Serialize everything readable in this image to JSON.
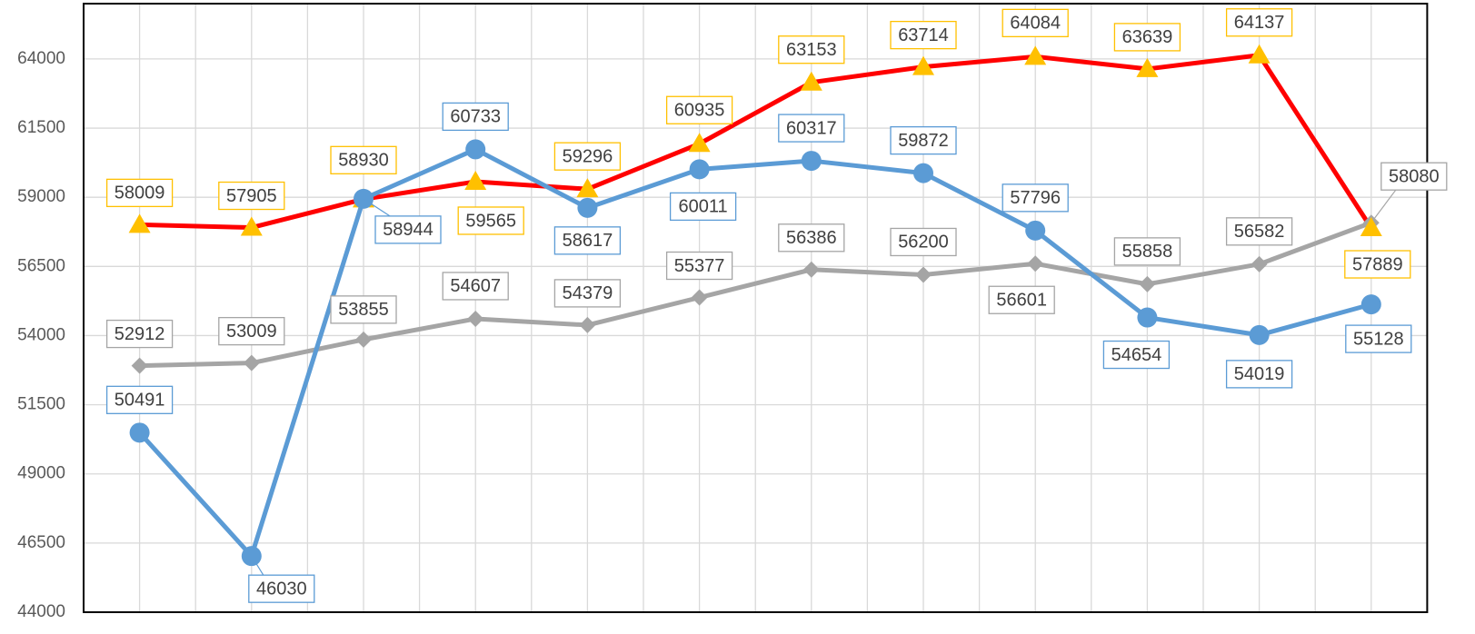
{
  "chart_data": {
    "type": "line",
    "categories": [
      null,
      null,
      null,
      null,
      null,
      null,
      null,
      null,
      null,
      null,
      null,
      null
    ],
    "ylim": [
      44000,
      66000
    ],
    "yticks": [
      44000,
      46500,
      49000,
      51500,
      54000,
      56500,
      59000,
      61500,
      64000
    ],
    "grid": true,
    "series": [
      {
        "color": "#5b9bd5",
        "marker": "circle",
        "values": [
          50491,
          46030,
          58944,
          60733,
          58617,
          60011,
          60317,
          59872,
          57796,
          54654,
          54019,
          55128
        ]
      },
      {
        "color": "#ff0000",
        "marker_color": "#ffc000",
        "marker": "triangle",
        "values": [
          58009,
          57905,
          58930,
          59565,
          59296,
          60935,
          63153,
          63714,
          64084,
          63639,
          64137,
          57889
        ]
      },
      {
        "color": "#a5a5a5",
        "marker": "diamond",
        "values": [
          52912,
          53009,
          53855,
          54607,
          54379,
          55377,
          56386,
          56200,
          56601,
          55858,
          56582,
          58080
        ]
      }
    ]
  }
}
